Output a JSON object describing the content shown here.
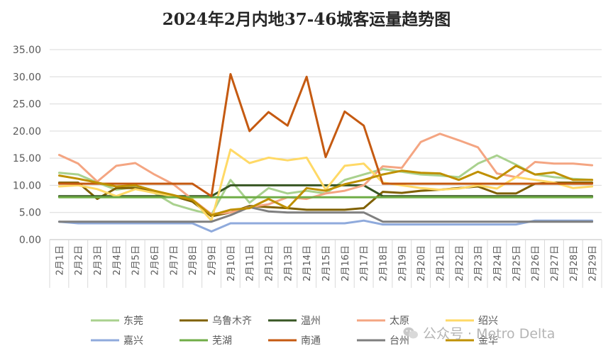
{
  "title": "2024年2月内地37-46城客运量趋势图",
  "watermark": "公众号 · Metro Delta",
  "chart_data": {
    "type": "line",
    "title": "2024年2月内地37-46城客运量趋势图",
    "xlabel": "",
    "ylabel": "",
    "ylim": [
      0,
      35
    ],
    "yticks": [
      "0.00",
      "5.00",
      "10.00",
      "15.00",
      "20.00",
      "25.00",
      "30.00",
      "35.00"
    ],
    "grid": true,
    "legend_position": "bottom",
    "categories": [
      "2月1日",
      "2月2日",
      "2月3日",
      "2月4日",
      "2月5日",
      "2月6日",
      "2月7日",
      "2月8日",
      "2月9日",
      "2月10日",
      "2月11日",
      "2月12日",
      "2月13日",
      "2月14日",
      "2月15日",
      "2月16日",
      "2月17日",
      "2月18日",
      "2月19日",
      "2月20日",
      "2月21日",
      "2月22日",
      "2月23日",
      "2月24日",
      "2月25日",
      "2月26日",
      "2月27日",
      "2月28日",
      "2月29日"
    ],
    "series": [
      {
        "name": "东莞",
        "color": "#a9d18e",
        "values": [
          12.3,
          12.0,
          10.5,
          9.2,
          9.7,
          8.6,
          6.5,
          5.5,
          4.6,
          11.0,
          6.8,
          9.5,
          8.5,
          9.0,
          8.5,
          11.0,
          12.0,
          13.0,
          12.5,
          12.0,
          11.8,
          11.5,
          14.0,
          15.5,
          13.8,
          12.0,
          11.5,
          11.2,
          11.0
        ]
      },
      {
        "name": "乌鲁木齐",
        "color": "#7f6000",
        "values": [
          10.5,
          10.5,
          7.5,
          9.5,
          9.5,
          8.8,
          8.0,
          7.0,
          4.3,
          5.0,
          6.2,
          6.0,
          5.8,
          5.5,
          5.5,
          5.5,
          5.8,
          8.8,
          8.6,
          9.0,
          9.2,
          9.5,
          9.8,
          8.5,
          8.5,
          10.3,
          10.5,
          10.5,
          10.5
        ]
      },
      {
        "name": "温州",
        "color": "#375623",
        "values": [
          8.0,
          8.0,
          8.0,
          8.0,
          8.0,
          8.0,
          8.0,
          8.0,
          8.0,
          10.0,
          10.0,
          10.0,
          10.0,
          10.0,
          10.0,
          10.0,
          10.0,
          8.0,
          8.0,
          8.0,
          8.0,
          8.0,
          8.0,
          8.0,
          8.0,
          8.0,
          8.0,
          8.0,
          8.0
        ]
      },
      {
        "name": "太原",
        "color": "#f4a582",
        "values": [
          15.6,
          14.0,
          10.7,
          13.6,
          14.1,
          12.0,
          10.2,
          7.4,
          4.7,
          5.0,
          6.0,
          6.5,
          7.8,
          7.5,
          8.5,
          9.0,
          10.0,
          13.5,
          13.2,
          18.0,
          19.5,
          18.3,
          17.0,
          12.2,
          11.5,
          14.3,
          14.0,
          14.0,
          13.7
        ]
      },
      {
        "name": "绍兴",
        "color": "#ffd966",
        "values": [
          9.8,
          10.0,
          9.3,
          8.0,
          9.3,
          8.6,
          8.0,
          7.5,
          3.5,
          16.6,
          14.1,
          15.1,
          14.6,
          15.1,
          9.2,
          13.6,
          14.0,
          10.5,
          10.0,
          9.5,
          9.2,
          9.4,
          10.0,
          9.4,
          11.5,
          11.0,
          10.5,
          9.5,
          9.8
        ]
      },
      {
        "name": "嘉兴",
        "color": "#8faadc",
        "values": [
          3.3,
          3.0,
          3.0,
          3.0,
          3.0,
          3.0,
          3.0,
          3.0,
          1.5,
          3.0,
          3.0,
          3.0,
          3.0,
          3.0,
          3.0,
          3.0,
          3.5,
          2.8,
          2.8,
          2.8,
          2.8,
          2.8,
          2.8,
          2.8,
          2.8,
          3.5,
          3.5,
          3.5,
          3.5
        ]
      },
      {
        "name": "芜湖",
        "color": "#70ad47",
        "values": [
          7.8,
          7.8,
          7.8,
          7.8,
          7.8,
          7.8,
          7.8,
          7.8,
          7.8,
          7.8,
          7.8,
          7.8,
          7.8,
          7.8,
          7.8,
          7.8,
          7.8,
          7.8,
          7.8,
          7.8,
          7.8,
          7.8,
          7.8,
          7.8,
          7.8,
          7.8,
          7.8,
          7.8,
          7.8
        ]
      },
      {
        "name": "南通",
        "color": "#c55a11",
        "values": [
          10.3,
          10.3,
          10.3,
          10.3,
          10.3,
          10.3,
          10.3,
          10.3,
          8.0,
          30.5,
          20.0,
          23.5,
          21.0,
          30.0,
          15.2,
          23.6,
          21.0,
          10.3,
          10.3,
          10.3,
          10.3,
          10.3,
          10.3,
          10.3,
          10.3,
          10.3,
          10.3,
          10.3,
          10.3
        ]
      },
      {
        "name": "台州",
        "color": "#7f7f7f",
        "values": [
          3.3,
          3.3,
          3.3,
          3.3,
          3.3,
          3.3,
          3.3,
          3.3,
          3.3,
          4.5,
          6.0,
          5.2,
          5.0,
          5.0,
          5.0,
          5.0,
          5.0,
          3.3,
          3.3,
          3.3,
          3.3,
          3.3,
          3.3,
          3.3,
          3.3,
          3.3,
          3.3,
          3.3,
          3.3
        ]
      },
      {
        "name": "金华",
        "color": "#bf9000",
        "values": [
          11.8,
          11.2,
          10.5,
          9.8,
          10.0,
          9.0,
          8.2,
          7.3,
          4.5,
          5.5,
          5.8,
          7.5,
          5.8,
          9.5,
          9.0,
          10.2,
          11.0,
          12.0,
          12.7,
          12.3,
          12.2,
          11.0,
          12.5,
          11.2,
          13.6,
          12.0,
          12.4,
          11.0,
          11.0
        ]
      }
    ]
  }
}
